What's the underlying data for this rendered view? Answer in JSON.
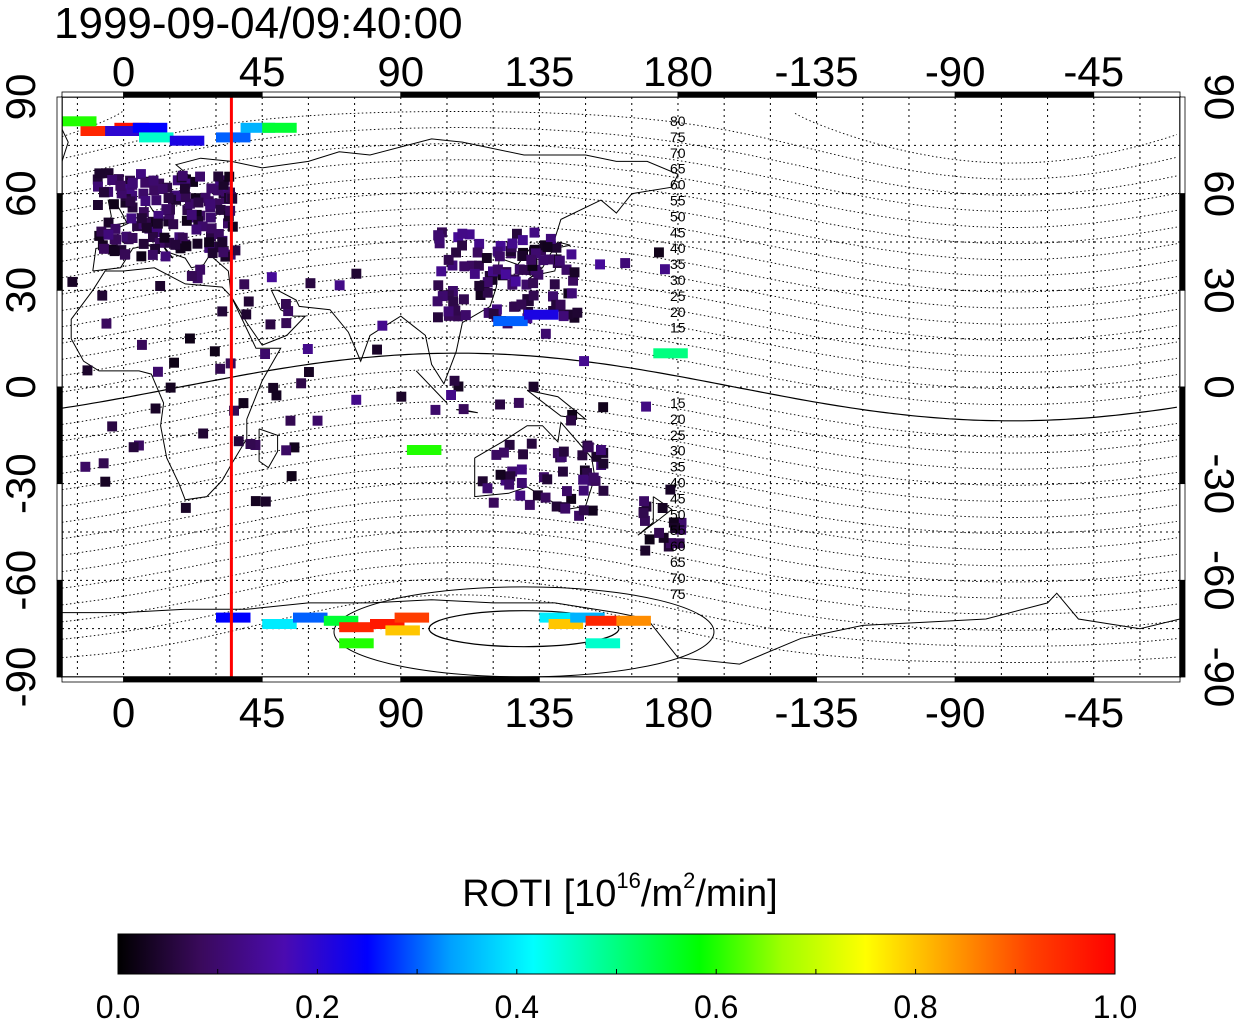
{
  "timestamp": "1999-09-04/09:40:00",
  "map": {
    "lon_ticks": [
      "0",
      "45",
      "90",
      "135",
      "180",
      "-135",
      "-90",
      "-45"
    ],
    "lat_ticks_left": [
      "90",
      "60",
      "30",
      "0",
      "-30",
      "-60",
      "-90"
    ],
    "lat_ticks_right": [
      "90",
      "60",
      "30",
      "0",
      "-30",
      "-60",
      "-90"
    ],
    "lat_tick_values": [
      90,
      60,
      30,
      0,
      -30,
      -60,
      -90
    ],
    "lon_tick_values": [
      0,
      45,
      90,
      135,
      180,
      225,
      270,
      315
    ],
    "lon_range": [
      -20,
      343
    ],
    "lat_range": [
      -90,
      90
    ],
    "terminator_lon": 35,
    "terminator_color": "#ff0000",
    "contour_labels_north": [
      "80",
      "75",
      "70",
      "65",
      "60",
      "55",
      "50",
      "45",
      "40",
      "35",
      "30",
      "25",
      "20",
      "15"
    ],
    "contour_labels_south": [
      "15",
      "20",
      "25",
      "30",
      "35",
      "40",
      "45",
      "50",
      "55",
      "60",
      "65",
      "70",
      "75"
    ]
  },
  "colorbar": {
    "title_main": "ROTI  [10",
    "title_exp1": "16",
    "title_mid": "/m",
    "title_exp2": "2",
    "title_end": "/min]",
    "tick_labels": [
      "0.0",
      "0.2",
      "0.4",
      "0.6",
      "0.8",
      "1.0"
    ],
    "range": [
      0.0,
      1.0
    ],
    "gradient_stops": [
      "#000000",
      "#3a0a5c",
      "#4b0bb0",
      "#0000ff",
      "#00a0ff",
      "#00ffff",
      "#00ff80",
      "#00ff00",
      "#a0ff00",
      "#ffff00",
      "#ffa000",
      "#ff4000",
      "#ff0000"
    ]
  }
}
